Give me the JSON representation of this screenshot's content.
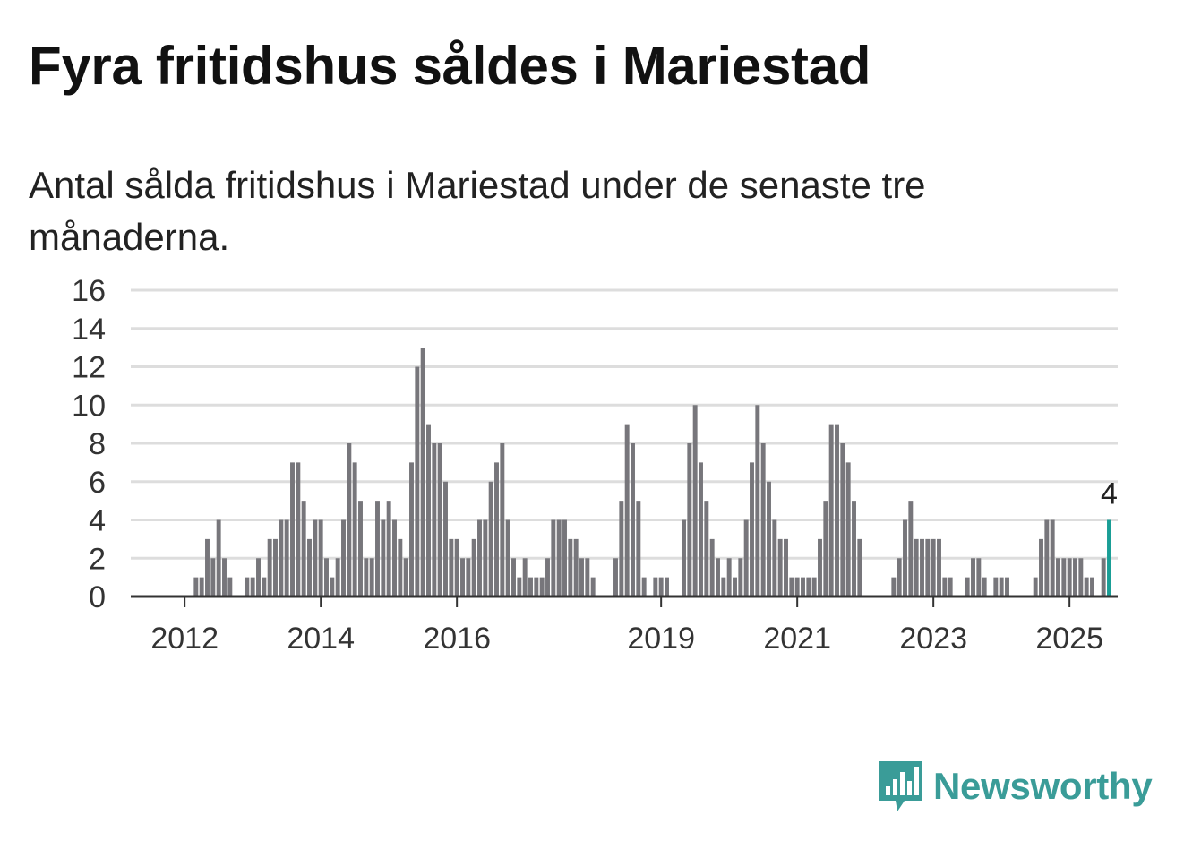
{
  "title": "Fyra fritidshus såldes i Mariestad",
  "subtitle": "Antal sålda fritidshus i Mariestad under de senaste tre månaderna.",
  "brand": {
    "name": "Newsworthy",
    "color": "#3a9c98"
  },
  "colors": {
    "bar": "#77767b",
    "highlight": "#1a9e96",
    "grid": "#dddddd",
    "axis": "#333333"
  },
  "chart_data": {
    "type": "bar",
    "start": "2011-04",
    "interval": "month",
    "xtick_labels": [
      "2012",
      "2014",
      "2016",
      "2019",
      "2021",
      "2023",
      "2025"
    ],
    "ylim": [
      0,
      16
    ],
    "yticks": [
      0,
      2,
      4,
      6,
      8,
      10,
      12,
      14,
      16
    ],
    "grid": true,
    "values": [
      0,
      0,
      0,
      0,
      0,
      0,
      0,
      0,
      0,
      0,
      0,
      1,
      1,
      3,
      2,
      4,
      2,
      1,
      0,
      0,
      1,
      1,
      2,
      1,
      3,
      3,
      4,
      4,
      7,
      7,
      5,
      3,
      4,
      4,
      2,
      1,
      2,
      4,
      8,
      7,
      5,
      2,
      2,
      5,
      4,
      5,
      4,
      3,
      2,
      7,
      12,
      13,
      9,
      8,
      8,
      6,
      3,
      3,
      2,
      2,
      3,
      4,
      4,
      6,
      7,
      8,
      4,
      2,
      1,
      2,
      1,
      1,
      1,
      2,
      4,
      4,
      4,
      3,
      3,
      2,
      2,
      1,
      0,
      0,
      0,
      2,
      5,
      9,
      8,
      5,
      1,
      0,
      1,
      1,
      1,
      0,
      0,
      4,
      8,
      10,
      7,
      5,
      3,
      2,
      1,
      2,
      1,
      2,
      4,
      7,
      10,
      8,
      6,
      4,
      3,
      3,
      1,
      1,
      1,
      1,
      1,
      3,
      5,
      9,
      9,
      8,
      7,
      5,
      3,
      0,
      0,
      0,
      0,
      0,
      1,
      2,
      4,
      5,
      3,
      3,
      3,
      3,
      3,
      1,
      1,
      0,
      0,
      1,
      2,
      2,
      1,
      0,
      1,
      1,
      1,
      0,
      0,
      0,
      0,
      1,
      3,
      4,
      4,
      2,
      2,
      2,
      2,
      2,
      1,
      1,
      0,
      2,
      4
    ],
    "highlight": {
      "label": "4",
      "value": 4
    }
  }
}
